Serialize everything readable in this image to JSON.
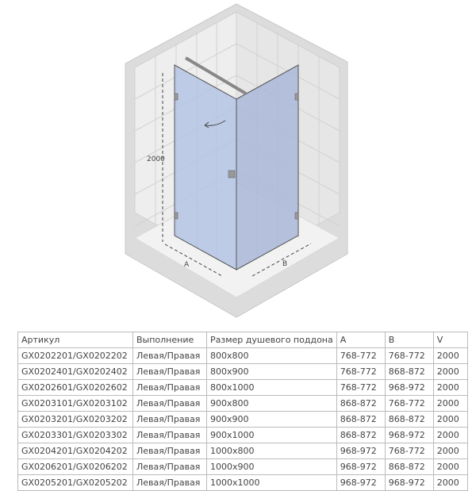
{
  "diagram": {
    "height_label": "2000",
    "width_label_a": "A",
    "width_label_b": "B",
    "glass_color": "#b4c4e4",
    "wall_color": "#e8e8e8"
  },
  "table": {
    "headers": [
      "Артикул",
      "Выполнение",
      "Размер душевого поддона",
      "A",
      "B",
      "V"
    ],
    "rows": [
      [
        "GX0202201/GX0202202",
        "Левая/Правая",
        "800x800",
        "768-772",
        "768-772",
        "2000"
      ],
      [
        "GX0202401/GX0202402",
        "Левая/Правая",
        "800x900",
        "768-772",
        "868-872",
        "2000"
      ],
      [
        "GX0202601/GX0202602",
        "Левая/Правая",
        "800x1000",
        "768-772",
        "968-972",
        "2000"
      ],
      [
        "GX0203101/GX0203102",
        "Левая/Правая",
        "900x800",
        "868-872",
        "768-772",
        "2000"
      ],
      [
        "GX0203201/GX0203202",
        "Левая/Правая",
        "900x900",
        "868-872",
        "868-872",
        "2000"
      ],
      [
        "GX0203301/GX0203302",
        "Левая/Правая",
        "900x1000",
        "868-872",
        "968-972",
        "2000"
      ],
      [
        "GX0204201/GX0204202",
        "Левая/Правая",
        "1000x800",
        "968-972",
        "768-772",
        "2000"
      ],
      [
        "GX0206201/GX0206202",
        "Левая/Правая",
        "1000x900",
        "968-972",
        "868-872",
        "2000"
      ],
      [
        "GX0205201/GX0205202",
        "Левая/Правая",
        "1000x1000",
        "968-972",
        "968-972",
        "2000"
      ]
    ]
  }
}
